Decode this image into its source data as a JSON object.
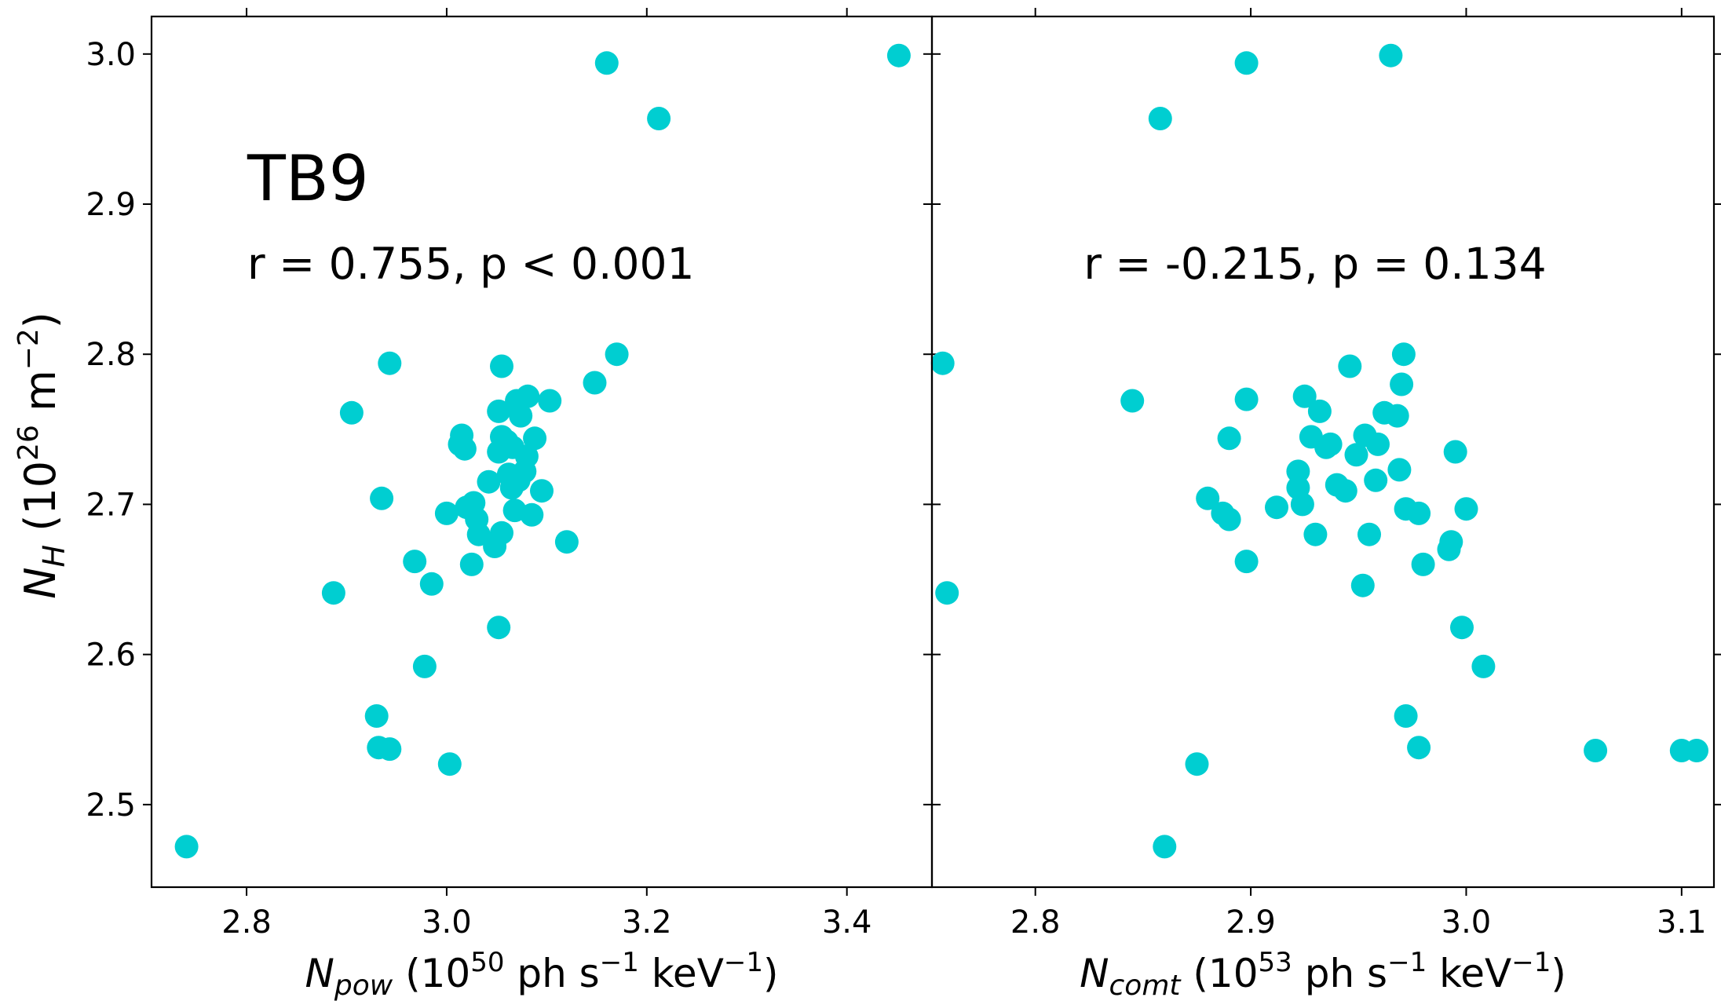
{
  "colors": {
    "points": "#00CED1",
    "annotation": "#00CED1",
    "axes": "#000000",
    "background": "#FFFFFF"
  },
  "shared_ylabel": {
    "main": "N",
    "sub": "H",
    "unit_open": " (10",
    "unit_exp": "26",
    "unit_rest": " m",
    "unit_exp2": "−2",
    "unit_close": ")"
  },
  "chart_data": [
    {
      "type": "scatter",
      "title": "",
      "xlabel": "N_pow (10^50 ph s^-1 keV^-1)",
      "xlabel_parts": {
        "main": "N",
        "sub": "pow",
        "unit_open": " (10",
        "unit_exp": "50",
        "unit_rest": " ph s",
        "unit_exp2": "−1",
        "unit_rest2": " keV",
        "unit_exp3": "−1",
        "unit_close": ")"
      },
      "ylabel": "N_H (10^26 m^-2)",
      "xlim": [
        2.705,
        3.485
      ],
      "ylim": [
        2.445,
        3.025
      ],
      "xticks": [
        2.8,
        3.0,
        3.2,
        3.4
      ],
      "xtick_labels": [
        "2.8",
        "3.0",
        "3.2",
        "3.4"
      ],
      "yticks": [
        2.5,
        2.6,
        2.7,
        2.8,
        2.9,
        3.0
      ],
      "ytick_labels": [
        "2.5",
        "2.6",
        "2.7",
        "2.8",
        "2.9",
        "3.0"
      ],
      "annotations": [
        "TB9",
        "r = 0.755, p < 0.001"
      ],
      "series": [
        {
          "name": "TB9",
          "x": [
            2.74,
            2.887,
            2.905,
            2.935,
            2.943,
            2.93,
            2.932,
            2.943,
            2.968,
            2.978,
            2.985,
            3.0,
            3.003,
            3.013,
            3.015,
            3.018,
            3.02,
            3.025,
            3.027,
            3.03,
            3.032,
            3.042,
            3.048,
            3.052,
            3.052,
            3.052,
            3.055,
            3.055,
            3.055,
            3.06,
            3.062,
            3.065,
            3.066,
            3.068,
            3.07,
            3.072,
            3.074,
            3.078,
            3.08,
            3.081,
            3.085,
            3.088,
            3.095,
            3.103,
            3.12,
            3.148,
            3.16,
            3.17,
            3.212,
            3.452
          ],
          "y": [
            2.472,
            2.641,
            2.761,
            2.704,
            2.794,
            2.559,
            2.538,
            2.537,
            2.662,
            2.592,
            2.647,
            2.694,
            2.527,
            2.74,
            2.746,
            2.737,
            2.698,
            2.66,
            2.701,
            2.69,
            2.68,
            2.715,
            2.672,
            2.762,
            2.618,
            2.735,
            2.745,
            2.792,
            2.681,
            2.742,
            2.72,
            2.711,
            2.738,
            2.696,
            2.769,
            2.716,
            2.759,
            2.722,
            2.732,
            2.772,
            2.693,
            2.744,
            2.709,
            2.769,
            2.675,
            2.781,
            2.994,
            2.8,
            2.957,
            2.999
          ]
        }
      ]
    },
    {
      "type": "scatter",
      "title": "",
      "xlabel": "N_comt (10^53 ph s^-1 keV^-1)",
      "xlabel_parts": {
        "main": "N",
        "sub": "comt",
        "unit_open": " (10",
        "unit_exp": "53",
        "unit_rest": " ph s",
        "unit_exp2": "−1",
        "unit_rest2": " keV",
        "unit_exp3": "−1",
        "unit_close": ")"
      },
      "ylabel": "N_H (10^26 m^-2)",
      "xlim": [
        2.752,
        3.115
      ],
      "ylim": [
        2.445,
        3.025
      ],
      "xticks": [
        2.8,
        2.9,
        3.0,
        3.1
      ],
      "xtick_labels": [
        "2.8",
        "2.9",
        "3.0",
        "3.1"
      ],
      "yticks": [
        2.5,
        2.6,
        2.7,
        2.8,
        2.9,
        3.0
      ],
      "ytick_labels": [
        "2.5",
        "2.6",
        "2.7",
        "2.8",
        "2.9",
        "3.0"
      ],
      "annotations": [
        "r = -0.215, p = 0.134"
      ],
      "series": [
        {
          "name": "TB9",
          "x": [
            2.757,
            2.759,
            2.845,
            2.858,
            2.86,
            2.875,
            2.88,
            2.887,
            2.89,
            2.89,
            2.898,
            2.898,
            2.898,
            2.912,
            2.922,
            2.922,
            2.924,
            2.925,
            2.928,
            2.93,
            2.932,
            2.935,
            2.937,
            2.94,
            2.944,
            2.946,
            2.949,
            2.952,
            2.953,
            2.955,
            2.958,
            2.959,
            2.962,
            2.965,
            2.968,
            2.969,
            2.97,
            2.971,
            2.972,
            2.972,
            2.978,
            2.978,
            2.98,
            2.992,
            2.993,
            2.995,
            2.998,
            3.0,
            3.008,
            3.06,
            3.1,
            3.107
          ],
          "y": [
            2.794,
            2.641,
            2.769,
            2.957,
            2.472,
            2.527,
            2.704,
            2.694,
            2.69,
            2.744,
            2.77,
            2.662,
            2.994,
            2.698,
            2.722,
            2.711,
            2.7,
            2.772,
            2.745,
            2.68,
            2.762,
            2.738,
            2.74,
            2.713,
            2.709,
            2.792,
            2.733,
            2.646,
            2.746,
            2.68,
            2.716,
            2.74,
            2.761,
            2.999,
            2.759,
            2.723,
            2.78,
            2.8,
            2.697,
            2.559,
            2.538,
            2.694,
            2.66,
            2.67,
            2.675,
            2.735,
            2.618,
            2.697,
            2.592,
            2.536,
            2.536,
            2.536
          ]
        }
      ]
    }
  ]
}
